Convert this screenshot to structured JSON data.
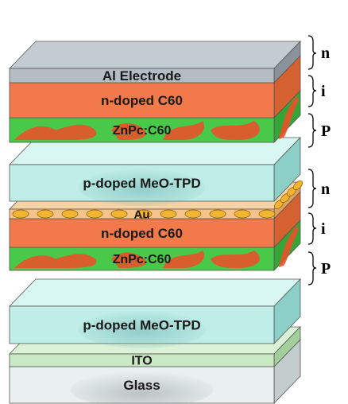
{
  "layers": [
    {
      "id": "al-electrode",
      "label": "Al Electrode",
      "front": "#b4bcc4",
      "side": "#8a939c",
      "top": "#c4ccd3"
    },
    {
      "id": "n-doped-c60-top",
      "label": "n-doped C60",
      "front": "#f27a4a",
      "side": "#d4612f",
      "top": "#f5a07c"
    },
    {
      "id": "znpc-c60-top",
      "label": "ZnPc:C60",
      "front": "#49c94a",
      "side": "#35a636",
      "top": "#6ed66f",
      "blobs": "#e8522a"
    },
    {
      "id": "p-doped-meo-tpd-top",
      "label": "p-doped MeO-TPD",
      "front": "#bfeee8",
      "side": "#8ccfc6",
      "top": "#d8f6f2"
    },
    {
      "id": "au-clusters",
      "label": "Au",
      "front": "#f6c38a",
      "side": "#e0a060",
      "top": "#f7d2a4",
      "dots": "#f2b531"
    },
    {
      "id": "n-doped-c60-bottom",
      "label": "n-doped C60",
      "front": "#f27a4a",
      "side": "#d4612f",
      "top": "#f5a07c"
    },
    {
      "id": "znpc-c60-bottom",
      "label": "ZnPc:C60",
      "front": "#49c94a",
      "side": "#35a636",
      "top": "#6ed66f",
      "blobs": "#e8522a"
    },
    {
      "id": "p-doped-meo-tpd-bottom",
      "label": "p-doped MeO-TPD",
      "front": "#bfeee8",
      "side": "#8ccfc6",
      "top": "#d8f6f2"
    },
    {
      "id": "ito",
      "label": "ITO",
      "front": "#c9e9c3",
      "side": "#a3cf9b",
      "top": "#dcf2d8"
    },
    {
      "id": "glass",
      "label": "Glass",
      "front": "#eaf0f0",
      "side": "#c3cccc",
      "top": "#f4f7f7"
    }
  ],
  "side_labels": {
    "upper": [
      "n",
      "i",
      "P"
    ],
    "lower": [
      "n",
      "i",
      "P"
    ]
  }
}
